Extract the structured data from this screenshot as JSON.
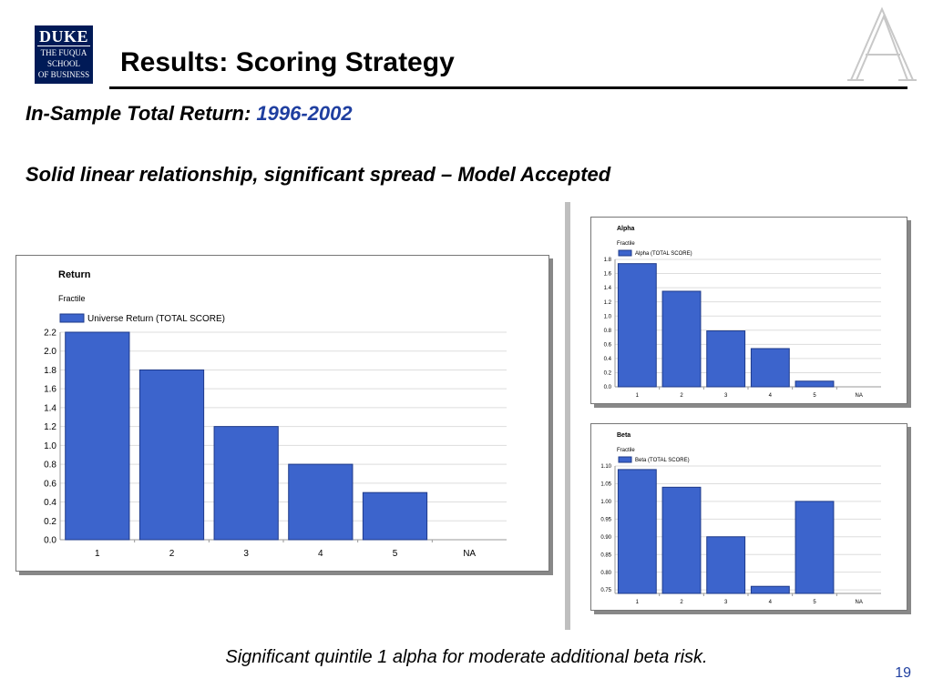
{
  "logo": {
    "line1": "DUKE",
    "line2": "THE FUQUA",
    "line3": "SCHOOL",
    "line4": "OF BUSINESS"
  },
  "title": "Results:  Scoring Strategy",
  "subtitle": {
    "prefix": "In-Sample Total Return: ",
    "years": "1996-2002"
  },
  "headline": "Solid linear relationship, significant spread – Model Accepted",
  "caption": "Significant quintile 1 alpha for moderate additional beta risk.",
  "page_number": "19",
  "colors": {
    "bar": "#3c64cc",
    "bar_edge": "#1e3a8a",
    "accent_text": "#1f3fa0"
  },
  "chart_data": [
    {
      "type": "bar",
      "title": "Return",
      "subtitle": "Fractile",
      "legend": "Universe Return (TOTAL SCORE)",
      "categories": [
        "1",
        "2",
        "3",
        "4",
        "5",
        "NA"
      ],
      "values": [
        2.2,
        1.8,
        1.2,
        0.8,
        0.5,
        null
      ],
      "ylim": [
        0,
        2.2
      ],
      "yticks": [
        "0.0",
        "0.2",
        "0.4",
        "0.6",
        "0.8",
        "1.0",
        "1.2",
        "1.4",
        "1.6",
        "1.8",
        "2.0",
        "2.2"
      ],
      "grid": true
    },
    {
      "type": "bar",
      "title": "Alpha",
      "subtitle": "Fractile",
      "legend": "Alpha (TOTAL SCORE)",
      "categories": [
        "1",
        "2",
        "3",
        "4",
        "5",
        "NA"
      ],
      "values": [
        1.74,
        1.35,
        0.79,
        0.54,
        0.08,
        null
      ],
      "ylim": [
        0,
        1.8
      ],
      "yticks": [
        "0.0",
        "0.2",
        "0.4",
        "0.6",
        "0.8",
        "1.0",
        "1.2",
        "1.4",
        "1.6",
        "1.8"
      ],
      "grid": true
    },
    {
      "type": "bar",
      "title": "Beta",
      "subtitle": "Fractile",
      "legend": "Beta (TOTAL SCORE)",
      "categories": [
        "1",
        "2",
        "3",
        "4",
        "5",
        "NA"
      ],
      "values": [
        1.09,
        1.04,
        0.9,
        0.76,
        1.0,
        null
      ],
      "ylim": [
        0.74,
        1.1
      ],
      "yticks": [
        "0.75",
        "0.80",
        "0.85",
        "0.90",
        "0.95",
        "1.00",
        "1.05",
        "1.10"
      ],
      "grid": true
    }
  ]
}
